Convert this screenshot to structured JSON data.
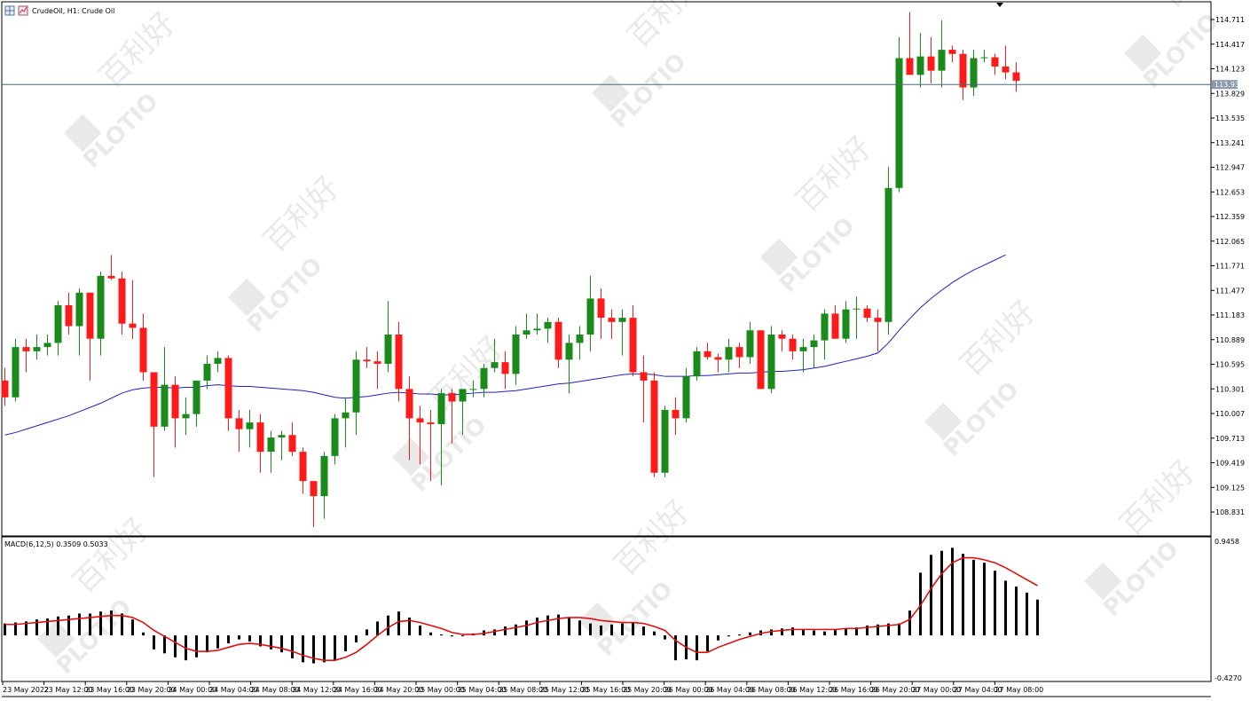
{
  "chart_header": {
    "symbol_label": "CrudeOil, H1:  Crude Oil",
    "macd_label": "MACD(6,12,5) 0.3509 0.5033"
  },
  "watermark": {
    "brand": "PLOTIO",
    "cn": "百利好"
  },
  "colors": {
    "bull": "#1a8a1a",
    "bear": "#ff1a1a",
    "ma": "#2020c0",
    "macd_signal": "#e01010",
    "histogram": "#000000",
    "current_price_bg": "#8a9aaa",
    "price_line": "#4a6a7a"
  },
  "chart_data": [
    {
      "type": "candlestick",
      "symbol": "CrudeOil",
      "timeframe": "H1",
      "ylim": [
        108.6,
        114.9
      ],
      "y_ticks": [
        "114.711",
        "114.417",
        "114.123",
        "113.829",
        "113.535",
        "113.241",
        "112.947",
        "112.653",
        "112.359",
        "112.065",
        "111.771",
        "111.477",
        "111.183",
        "110.889",
        "110.595",
        "110.301",
        "110.007",
        "109.713",
        "109.419",
        "109.125",
        "108.831"
      ],
      "current_price": "113.935",
      "x_tick_labels": [
        "23 May 2022",
        "23 May 12:00",
        "23 May 16:00",
        "23 May 20:00",
        "24 May 00:00",
        "24 May 04:00",
        "24 May 08:00",
        "24 May 12:00",
        "24 May 16:00",
        "24 May 20:00",
        "25 May 00:00",
        "25 May 04:00",
        "25 May 08:00",
        "25 May 12:00",
        "25 May 16:00",
        "25 May 20:00",
        "26 May 00:00",
        "26 May 04:00",
        "26 May 08:00",
        "26 May 12:00",
        "26 May 16:00",
        "26 May 20:00",
        "27 May 00:00",
        "27 May 04:00",
        "27 May 08:00"
      ],
      "candles": [
        [
          110.4,
          110.55,
          110.1,
          110.2
        ],
        [
          110.2,
          110.9,
          110.15,
          110.8
        ],
        [
          110.8,
          110.9,
          110.5,
          110.75
        ],
        [
          110.75,
          110.95,
          110.65,
          110.8
        ],
        [
          110.8,
          110.95,
          110.7,
          110.85
        ],
        [
          110.85,
          111.35,
          110.7,
          111.3
        ],
        [
          111.3,
          111.45,
          110.95,
          111.05
        ],
        [
          111.05,
          111.5,
          110.7,
          111.45
        ],
        [
          111.45,
          111.45,
          110.4,
          110.9
        ],
        [
          110.9,
          111.7,
          110.7,
          111.65
        ],
        [
          111.65,
          111.9,
          111.6,
          111.62
        ],
        [
          111.62,
          111.7,
          110.95,
          111.08
        ],
        [
          111.08,
          111.6,
          110.9,
          111.03
        ],
        [
          111.03,
          111.2,
          110.4,
          110.5
        ],
        [
          110.5,
          110.5,
          109.25,
          109.85
        ],
        [
          109.85,
          110.8,
          109.8,
          110.35
        ],
        [
          110.35,
          110.45,
          109.6,
          109.95
        ],
        [
          109.95,
          110.2,
          109.75,
          110.0
        ],
        [
          110.0,
          110.35,
          109.85,
          110.4
        ],
        [
          110.4,
          110.7,
          110.3,
          110.6
        ],
        [
          110.6,
          110.75,
          110.5,
          110.67
        ],
        [
          110.67,
          110.7,
          109.8,
          109.95
        ],
        [
          109.95,
          110.05,
          109.55,
          109.82
        ],
        [
          109.82,
          110.05,
          109.6,
          109.9
        ],
        [
          109.9,
          110.0,
          109.3,
          109.55
        ],
        [
          109.55,
          109.8,
          109.3,
          109.72
        ],
        [
          109.72,
          109.8,
          109.45,
          109.75
        ],
        [
          109.75,
          109.9,
          109.5,
          109.55
        ],
        [
          109.55,
          109.6,
          109.05,
          109.2
        ],
        [
          109.2,
          109.2,
          108.65,
          109.02
        ],
        [
          109.02,
          109.55,
          108.75,
          109.5
        ],
        [
          109.5,
          110.0,
          109.4,
          109.95
        ],
        [
          109.95,
          110.2,
          109.6,
          110.02
        ],
        [
          110.02,
          110.75,
          109.75,
          110.65
        ],
        [
          110.65,
          110.8,
          110.55,
          110.63
        ],
        [
          110.63,
          110.75,
          110.3,
          110.6
        ],
        [
          110.6,
          111.35,
          110.5,
          110.95
        ],
        [
          110.95,
          111.1,
          110.15,
          110.3
        ],
        [
          110.3,
          110.45,
          109.45,
          109.95
        ],
        [
          109.95,
          110.1,
          109.4,
          109.9
        ],
        [
          109.9,
          110.05,
          109.2,
          109.88
        ],
        [
          109.88,
          110.3,
          109.15,
          110.25
        ],
        [
          110.25,
          110.3,
          109.65,
          110.15
        ],
        [
          110.15,
          110.3,
          109.75,
          110.3
        ],
        [
          110.3,
          110.4,
          110.2,
          110.3
        ],
        [
          110.3,
          110.6,
          110.2,
          110.55
        ],
        [
          110.55,
          110.9,
          110.5,
          110.62
        ],
        [
          110.62,
          110.75,
          110.3,
          110.48
        ],
        [
          110.48,
          111.05,
          110.35,
          110.95
        ],
        [
          110.95,
          111.2,
          110.9,
          111.0
        ],
        [
          111.0,
          111.2,
          110.95,
          111.02
        ],
        [
          111.02,
          111.15,
          110.85,
          111.1
        ],
        [
          111.1,
          111.15,
          110.55,
          110.65
        ],
        [
          110.65,
          110.95,
          110.25,
          110.85
        ],
        [
          110.85,
          111.05,
          110.65,
          110.95
        ],
        [
          110.95,
          111.65,
          110.75,
          111.38
        ],
        [
          111.38,
          111.5,
          110.9,
          111.15
        ],
        [
          111.15,
          111.25,
          110.9,
          111.1
        ],
        [
          111.1,
          111.25,
          110.7,
          111.15
        ],
        [
          111.15,
          111.3,
          110.45,
          110.5
        ],
        [
          110.5,
          110.7,
          109.9,
          110.4
        ],
        [
          110.4,
          110.5,
          109.25,
          109.3
        ],
        [
          109.3,
          110.1,
          109.25,
          110.05
        ],
        [
          110.05,
          110.2,
          109.75,
          109.95
        ],
        [
          109.95,
          110.55,
          109.9,
          110.45
        ],
        [
          110.45,
          110.8,
          110.4,
          110.75
        ],
        [
          110.75,
          110.85,
          110.65,
          110.68
        ],
        [
          110.68,
          110.72,
          110.5,
          110.65
        ],
        [
          110.65,
          110.9,
          110.5,
          110.8
        ],
        [
          110.8,
          110.85,
          110.55,
          110.68
        ],
        [
          110.68,
          111.1,
          110.6,
          111.0
        ],
        [
          111.0,
          111.0,
          110.3,
          110.3
        ],
        [
          110.3,
          111.05,
          110.25,
          110.95
        ],
        [
          110.95,
          111.0,
          110.75,
          110.9
        ],
        [
          110.9,
          110.95,
          110.65,
          110.75
        ],
        [
          110.75,
          110.9,
          110.5,
          110.8
        ],
        [
          110.8,
          110.95,
          110.55,
          110.88
        ],
        [
          110.88,
          111.25,
          110.65,
          111.2
        ],
        [
          111.2,
          111.3,
          110.9,
          110.9
        ],
        [
          110.9,
          111.35,
          110.85,
          111.25
        ],
        [
          111.25,
          111.4,
          110.9,
          111.26
        ],
        [
          111.26,
          111.3,
          111.1,
          111.15
        ],
        [
          111.15,
          111.25,
          110.75,
          111.1
        ],
        [
          111.1,
          112.95,
          110.95,
          112.7
        ],
        [
          112.7,
          114.5,
          112.65,
          114.25
        ],
        [
          114.25,
          114.8,
          114.1,
          114.05
        ],
        [
          114.05,
          114.55,
          113.9,
          114.27
        ],
        [
          114.27,
          114.5,
          113.95,
          114.1
        ],
        [
          114.1,
          114.7,
          113.9,
          114.35
        ],
        [
          114.35,
          114.4,
          114.2,
          114.3
        ],
        [
          114.3,
          114.35,
          113.75,
          113.9
        ],
        [
          113.9,
          114.35,
          113.8,
          114.25
        ],
        [
          114.25,
          114.35,
          114.2,
          114.26
        ],
        [
          114.26,
          114.3,
          114.05,
          114.15
        ],
        [
          114.15,
          114.4,
          114.0,
          114.08
        ],
        [
          114.08,
          114.2,
          113.85,
          113.98
        ]
      ],
      "moving_average": [
        109.75,
        109.78,
        109.82,
        109.86,
        109.9,
        109.94,
        109.98,
        110.03,
        110.08,
        110.13,
        110.19,
        110.25,
        110.29,
        110.31,
        110.32,
        110.32,
        110.31,
        110.32,
        110.32,
        110.34,
        110.35,
        110.34,
        110.33,
        110.33,
        110.32,
        110.31,
        110.3,
        110.29,
        110.28,
        110.26,
        110.23,
        110.2,
        110.19,
        110.2,
        110.21,
        110.23,
        110.25,
        110.26,
        110.25,
        110.24,
        110.24,
        110.23,
        110.23,
        110.24,
        110.25,
        110.26,
        110.26,
        110.27,
        110.28,
        110.3,
        110.32,
        110.34,
        110.36,
        110.37,
        110.39,
        110.41,
        110.43,
        110.45,
        110.47,
        110.48,
        110.48,
        110.47,
        110.45,
        110.45,
        110.45,
        110.46,
        110.46,
        110.47,
        110.48,
        110.49,
        110.49,
        110.5,
        110.51,
        110.51,
        110.52,
        110.53,
        110.55,
        110.57,
        110.6,
        110.63,
        110.66,
        110.69,
        110.73,
        110.85,
        111.0,
        111.14,
        111.27,
        111.38,
        111.48,
        111.57,
        111.65,
        111.72,
        111.78,
        111.84,
        111.9
      ]
    },
    {
      "type": "histogram+line",
      "name": "MACD(6,12,5)",
      "ylim": [
        -0.427,
        0.9458
      ],
      "y_ticks": [
        "0.9458",
        "-0.4270"
      ],
      "histogram": [
        0.12,
        0.13,
        0.14,
        0.16,
        0.17,
        0.19,
        0.2,
        0.22,
        0.22,
        0.24,
        0.25,
        0.22,
        0.16,
        0.03,
        -0.14,
        -0.18,
        -0.22,
        -0.25,
        -0.22,
        -0.17,
        -0.13,
        -0.08,
        -0.04,
        -0.06,
        -0.11,
        -0.14,
        -0.17,
        -0.23,
        -0.27,
        -0.28,
        -0.27,
        -0.25,
        -0.16,
        -0.07,
        0.06,
        0.14,
        0.2,
        0.24,
        0.18,
        0.1,
        0.03,
        0.01,
        -0.01,
        0.0,
        0.02,
        0.05,
        0.06,
        0.09,
        0.11,
        0.15,
        0.18,
        0.2,
        0.21,
        0.18,
        0.15,
        0.12,
        0.1,
        0.11,
        0.12,
        0.13,
        0.09,
        0.04,
        -0.04,
        -0.25,
        -0.24,
        -0.25,
        -0.16,
        -0.05,
        -0.01,
        0.01,
        0.03,
        0.05,
        0.06,
        0.07,
        0.08,
        0.06,
        0.05,
        0.04,
        0.06,
        0.07,
        0.08,
        0.1,
        0.11,
        0.12,
        0.12,
        0.25,
        0.63,
        0.81,
        0.85,
        0.88,
        0.82,
        0.76,
        0.73,
        0.65,
        0.55,
        0.49,
        0.43,
        0.36
      ],
      "signal": [
        0.11,
        0.11,
        0.12,
        0.13,
        0.14,
        0.15,
        0.16,
        0.17,
        0.18,
        0.19,
        0.2,
        0.2,
        0.18,
        0.13,
        0.05,
        -0.01,
        -0.07,
        -0.13,
        -0.16,
        -0.16,
        -0.15,
        -0.12,
        -0.09,
        -0.08,
        -0.09,
        -0.11,
        -0.13,
        -0.16,
        -0.2,
        -0.23,
        -0.25,
        -0.25,
        -0.22,
        -0.17,
        -0.09,
        0.0,
        0.08,
        0.14,
        0.15,
        0.13,
        0.1,
        0.07,
        0.03,
        0.01,
        0.01,
        0.02,
        0.04,
        0.06,
        0.08,
        0.1,
        0.13,
        0.15,
        0.17,
        0.18,
        0.18,
        0.17,
        0.15,
        0.14,
        0.13,
        0.13,
        0.12,
        0.09,
        0.05,
        -0.05,
        -0.12,
        -0.17,
        -0.17,
        -0.12,
        -0.08,
        -0.04,
        -0.01,
        0.02,
        0.04,
        0.05,
        0.06,
        0.06,
        0.06,
        0.06,
        0.06,
        0.07,
        0.07,
        0.08,
        0.09,
        0.1,
        0.11,
        0.16,
        0.3,
        0.47,
        0.62,
        0.73,
        0.78,
        0.78,
        0.76,
        0.73,
        0.68,
        0.62,
        0.56,
        0.5
      ]
    }
  ]
}
